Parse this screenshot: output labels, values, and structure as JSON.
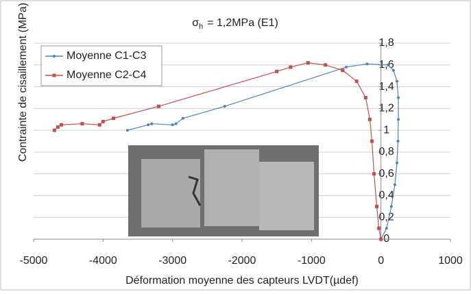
{
  "chart_data": {
    "type": "line",
    "title": [
      "σ",
      "h",
      "= 1,2MPa (E1)"
    ],
    "x_label": "Déformation moyenne des capteurs LVDT(µdef)",
    "y_label": "Contrainte de cisaillement (MPa)",
    "xlim": [
      -5000,
      1000
    ],
    "xticks": [
      -5000,
      -4000,
      -3000,
      -2000,
      -1000,
      0,
      1000
    ],
    "ylim": [
      0,
      1.8
    ],
    "yticks": [
      0,
      {
        "value": 0.2,
        "label": "0,2"
      },
      {
        "value": 0.4,
        "label": "0,4"
      },
      {
        "value": 0.6,
        "label": "0,6"
      },
      {
        "value": 0.8,
        "label": "0,8"
      },
      1,
      {
        "value": 1.2,
        "label": "1,2"
      },
      {
        "value": 1.4,
        "label": "1,4"
      },
      {
        "value": 1.6,
        "label": "1,6"
      },
      {
        "value": 1.8,
        "label": "1,8"
      }
    ],
    "grid": true,
    "legend": "top-left",
    "series": [
      {
        "name": "Moyenne C1-C3",
        "color": "#4f81bd",
        "marker": "circle",
        "x": [
          0,
          80,
          150,
          200,
          230,
          245,
          250,
          250,
          230,
          180,
          100,
          -200,
          -500,
          -2250,
          -2850,
          -2950,
          -3000,
          -3300,
          -3350,
          -3650
        ],
        "values": [
          0,
          0.1,
          0.3,
          0.5,
          0.7,
          0.9,
          1.1,
          1.3,
          1.45,
          1.55,
          1.6,
          1.61,
          1.58,
          1.22,
          1.11,
          1.06,
          1.05,
          1.06,
          1.05,
          1.0
        ]
      },
      {
        "name": "Moyenne C2-C4",
        "color": "#c0504d",
        "marker": "square",
        "x": [
          0,
          -30,
          -60,
          -100,
          -130,
          -160,
          -220,
          -350,
          -550,
          -800,
          -1050,
          -1300,
          -1500,
          -3200,
          -3850,
          -4000,
          -4050,
          -4300,
          -4600,
          -4650,
          -4700
        ],
        "values": [
          0,
          0.1,
          0.3,
          0.6,
          0.9,
          1.1,
          1.3,
          1.45,
          1.55,
          1.6,
          1.62,
          1.58,
          1.54,
          1.22,
          1.11,
          1.08,
          1.05,
          1.06,
          1.05,
          1.03,
          1.0
        ]
      }
    ]
  }
}
